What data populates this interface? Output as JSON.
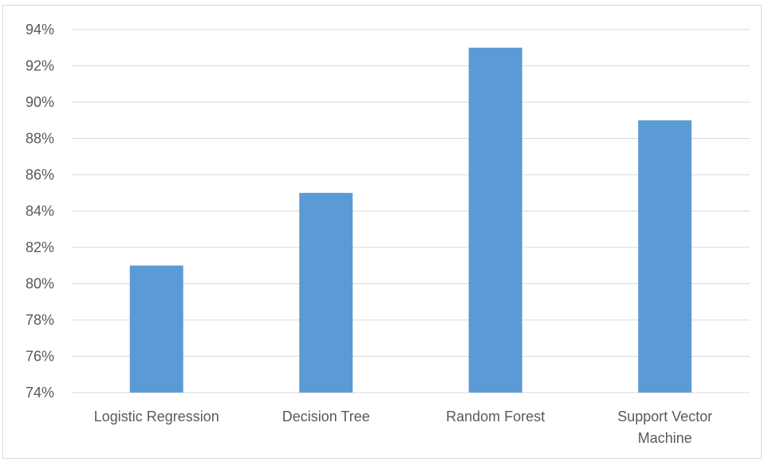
{
  "chart_data": {
    "type": "bar",
    "categories": [
      "Logistic Regression",
      "Decision Tree",
      "Random Forest",
      "Support Vector Machine"
    ],
    "category_lines": [
      [
        "Logistic Regression"
      ],
      [
        "Decision Tree"
      ],
      [
        "Random Forest"
      ],
      [
        "Support Vector",
        "Machine"
      ]
    ],
    "values": [
      81,
      85,
      93,
      89
    ],
    "value_unit": "%",
    "ylim": [
      74,
      94
    ],
    "ytick_step": 2,
    "yticks": [
      "74%",
      "76%",
      "78%",
      "80%",
      "82%",
      "84%",
      "86%",
      "88%",
      "90%",
      "92%",
      "94%"
    ],
    "title": "",
    "xlabel": "",
    "ylabel": "",
    "grid": true,
    "legend": "none",
    "colors": {
      "bar": "#5b9bd5",
      "grid": "#d9d9d9",
      "text": "#595959"
    }
  }
}
